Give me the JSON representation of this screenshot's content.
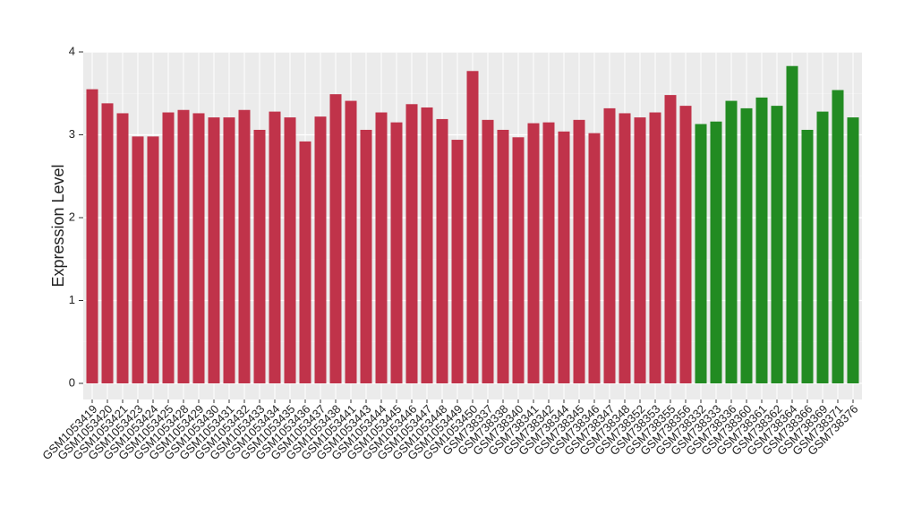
{
  "chart_data": {
    "type": "bar",
    "y_label": "Expression Level",
    "categories": [
      "GSM1053419",
      "GSM1053420",
      "GSM1053421",
      "GSM1053423",
      "GSM1053424",
      "GSM1053425",
      "GSM1053428",
      "GSM1053429",
      "GSM1053430",
      "GSM1053431",
      "GSM1053432",
      "GSM1053433",
      "GSM1053434",
      "GSM1053435",
      "GSM1053436",
      "GSM1053437",
      "GSM1053438",
      "GSM1053441",
      "GSM1053443",
      "GSM1053444",
      "GSM1053445",
      "GSM1053446",
      "GSM1053447",
      "GSM1053448",
      "GSM1053449",
      "GSM1053450",
      "GSM738337",
      "GSM738338",
      "GSM738340",
      "GSM738341",
      "GSM738342",
      "GSM738344",
      "GSM738345",
      "GSM738346",
      "GSM738347",
      "GSM738348",
      "GSM738352",
      "GSM738353",
      "GSM738355",
      "GSM738356",
      "GSM738332",
      "GSM738333",
      "GSM738336",
      "GSM738360",
      "GSM738361",
      "GSM738362",
      "GSM738364",
      "GSM738366",
      "GSM738369",
      "GSM738371",
      "GSM738376"
    ],
    "values": [
      3.55,
      3.38,
      3.26,
      2.98,
      2.98,
      3.27,
      3.3,
      3.26,
      3.21,
      3.21,
      3.3,
      3.06,
      3.28,
      3.21,
      2.92,
      3.22,
      3.49,
      3.41,
      3.06,
      3.27,
      3.15,
      3.37,
      3.33,
      3.19,
      2.94,
      3.77,
      3.18,
      3.06,
      2.97,
      3.14,
      3.15,
      3.04,
      3.18,
      3.02,
      3.32,
      3.26,
      3.21,
      3.27,
      3.48,
      3.35,
      3.13,
      3.16,
      3.41,
      3.32,
      3.45,
      3.35,
      3.83,
      3.06,
      3.28,
      3.54,
      3.21
    ],
    "colors": [
      "#c0334a",
      "#c0334a",
      "#c0334a",
      "#c0334a",
      "#c0334a",
      "#c0334a",
      "#c0334a",
      "#c0334a",
      "#c0334a",
      "#c0334a",
      "#c0334a",
      "#c0334a",
      "#c0334a",
      "#c0334a",
      "#c0334a",
      "#c0334a",
      "#c0334a",
      "#c0334a",
      "#c0334a",
      "#c0334a",
      "#c0334a",
      "#c0334a",
      "#c0334a",
      "#c0334a",
      "#c0334a",
      "#c0334a",
      "#c0334a",
      "#c0334a",
      "#c0334a",
      "#c0334a",
      "#c0334a",
      "#c0334a",
      "#c0334a",
      "#c0334a",
      "#c0334a",
      "#c0334a",
      "#c0334a",
      "#c0334a",
      "#c0334a",
      "#c0334a",
      "#228b22",
      "#228b22",
      "#228b22",
      "#228b22",
      "#228b22",
      "#228b22",
      "#228b22",
      "#228b22",
      "#228b22",
      "#228b22",
      "#228b22"
    ],
    "ylim": [
      0,
      4
    ],
    "yticks": [
      0,
      1,
      2,
      3,
      4
    ],
    "grid": true
  }
}
